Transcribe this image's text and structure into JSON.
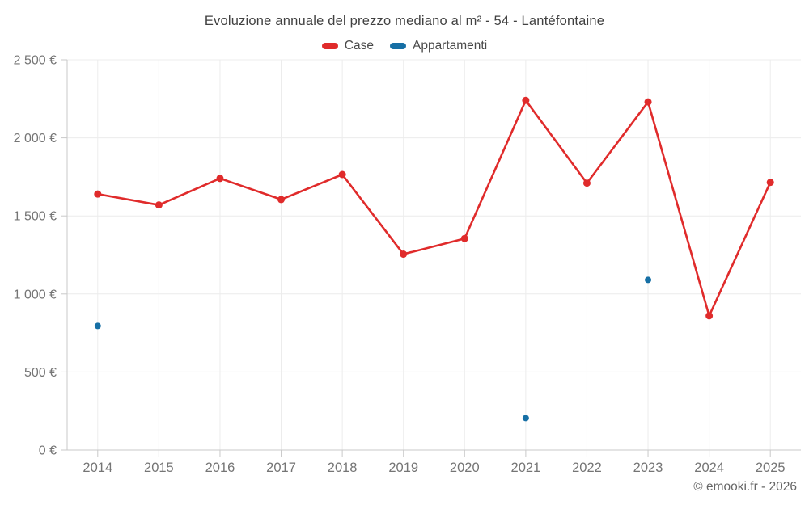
{
  "title": "Evoluzione annuale del prezzo mediano al m² - 54 - Lantéfontaine",
  "footer_credit": "© emooki.fr - 2026",
  "legend": {
    "items": [
      {
        "label": "Case",
        "color": "#e02b2b"
      },
      {
        "label": "Appartamenti",
        "color": "#166fa5"
      }
    ]
  },
  "chart_data": {
    "type": "line",
    "title": "Evoluzione annuale del prezzo mediano al m² - 54 - Lantéfontaine",
    "categories": [
      2014,
      2015,
      2016,
      2017,
      2018,
      2019,
      2020,
      2021,
      2022,
      2023,
      2024,
      2025
    ],
    "x_tick_labels": [
      "2014",
      "2015",
      "2016",
      "2017",
      "2018",
      "2019",
      "2020",
      "2021",
      "2022",
      "2023",
      "2024",
      "2025"
    ],
    "series": [
      {
        "name": "Case",
        "color": "#e02b2b",
        "style": "line+markers",
        "values": [
          1640,
          1570,
          1740,
          1605,
          1765,
          1255,
          1355,
          2240,
          1710,
          2230,
          860,
          1715
        ]
      },
      {
        "name": "Appartamenti",
        "color": "#166fa5",
        "style": "markers",
        "values": [
          795,
          null,
          null,
          null,
          null,
          null,
          null,
          205,
          null,
          1090,
          null,
          null
        ]
      }
    ],
    "xlabel": "",
    "ylabel": "",
    "ylim": [
      0,
      2500
    ],
    "ytick_step": 500,
    "ytick_labels": [
      "0 €",
      "500 €",
      "1 000 €",
      "1 500 €",
      "2 000 €",
      "2 500 €"
    ],
    "unit": "€",
    "grid": true,
    "legend_position": "top"
  },
  "theme": {
    "grid_color": "#ececec",
    "axis_color": "#c9c9c9",
    "tick_color": "#c9c9c9",
    "axis_label_color": "#757575",
    "title_color": "#414141",
    "legend_label_color": "#4a4a4a",
    "footer_color": "#666666",
    "background": "#ffffff"
  }
}
